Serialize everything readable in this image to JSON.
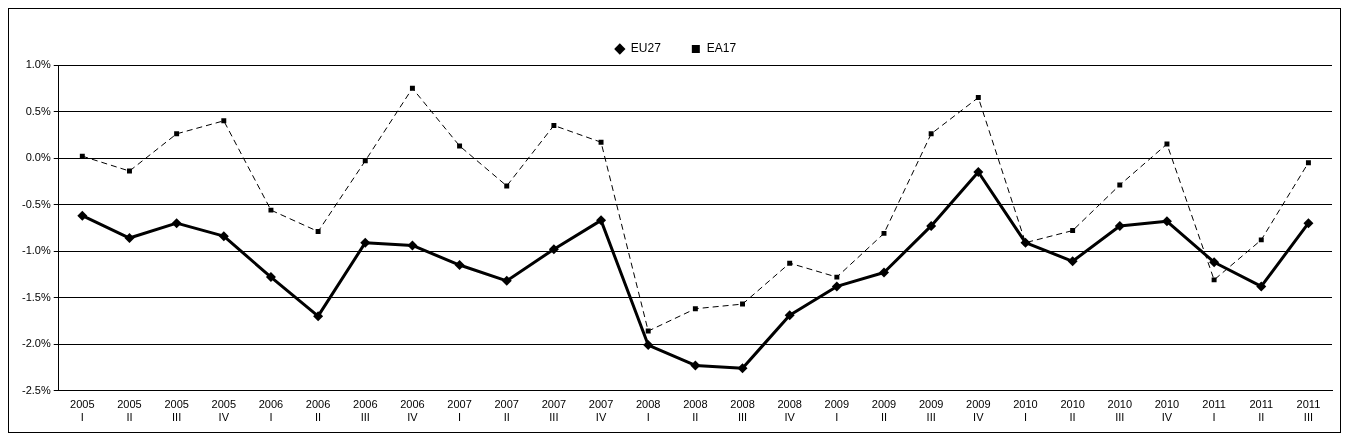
{
  "chart_data": {
    "type": "line",
    "categories": [
      "2005\nI",
      "2005\nII",
      "2005\nIII",
      "2005\nIV",
      "2006\nI",
      "2006\nII",
      "2006\nIII",
      "2006\nIV",
      "2007\nI",
      "2007\nII",
      "2007\nIII",
      "2007\nIV",
      "2008\nI",
      "2008\nII",
      "2008\nIII",
      "2008\nIV",
      "2009\nI",
      "2009\nII",
      "2009\nIII",
      "2009\nIV",
      "2010\nI",
      "2010\nII",
      "2010\nIII",
      "2010\nIV",
      "2011\nI",
      "2011\nII",
      "2011\nIII"
    ],
    "series": [
      {
        "name": "EU27",
        "color": "#000000",
        "marker": "diamond",
        "line_style": "solid",
        "values": [
          -0.62,
          -0.86,
          -0.7,
          -0.84,
          -1.28,
          -1.7,
          -0.91,
          -0.94,
          -1.15,
          -1.32,
          -0.98,
          -0.67,
          -2.01,
          -2.23,
          -2.26,
          -1.69,
          -1.38,
          -1.23,
          -0.73,
          -0.15,
          -0.91,
          -1.11,
          -0.73,
          -0.68,
          -1.12,
          -1.38,
          -0.7
        ]
      },
      {
        "name": "EA17",
        "color": "#000000",
        "marker": "square",
        "line_style": "dashed",
        "values": [
          0.02,
          -0.14,
          0.26,
          0.4,
          -0.56,
          -0.79,
          -0.03,
          0.75,
          0.13,
          -0.3,
          0.35,
          0.17,
          -1.86,
          -1.62,
          -1.57,
          -1.13,
          -1.28,
          -0.81,
          0.26,
          0.65,
          -0.91,
          -0.78,
          -0.29,
          0.15,
          -1.31,
          -0.88,
          -0.05
        ]
      }
    ],
    "ylim": [
      -2.5,
      1.0
    ],
    "yticks": [
      {
        "value": -2.5,
        "label": "-2.5%"
      },
      {
        "value": -2.0,
        "label": "-2.0%"
      },
      {
        "value": -1.5,
        "label": "-1.5%"
      },
      {
        "value": -1.0,
        "label": "-1.0%"
      },
      {
        "value": -0.5,
        "label": "-0.5%"
      },
      {
        "value": 0.0,
        "label": "0.0%"
      },
      {
        "value": 0.5,
        "label": "0.5%"
      },
      {
        "value": 1.0,
        "label": "1.0%"
      }
    ],
    "grid": "y",
    "legend": "top"
  }
}
